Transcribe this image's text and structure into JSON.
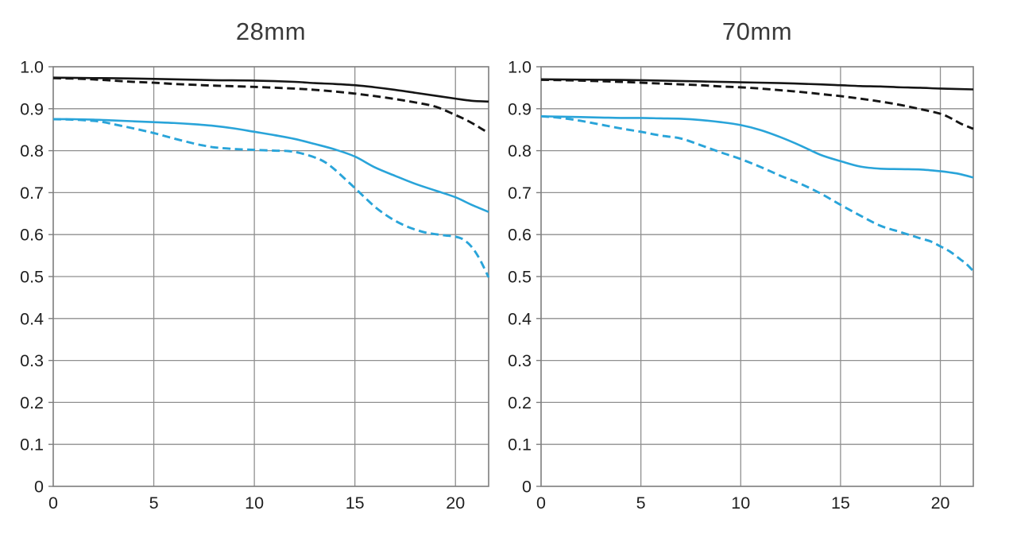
{
  "page": {
    "background": "#ffffff"
  },
  "colors": {
    "grid": "#8f8f8f",
    "plot_border": "#7d7d7d",
    "curve_black": "#151515",
    "curve_blue": "#29a4d9",
    "tick_text": "#1f1f1f",
    "title_text": "#3a3a3a"
  },
  "chart_data": [
    {
      "type": "line",
      "title": "28mm",
      "xlabel": "",
      "ylabel": "",
      "x_range": [
        0,
        21.65
      ],
      "y_range": [
        0,
        1.0
      ],
      "x_ticks": [
        0,
        5,
        10,
        15,
        20
      ],
      "x_tick_labels": [
        "0",
        "5",
        "10",
        "15",
        "20"
      ],
      "y_ticks": [
        0,
        0.1,
        0.2,
        0.3,
        0.4,
        0.5,
        0.6,
        0.7,
        0.8,
        0.9,
        1.0
      ],
      "y_tick_labels": [
        "0",
        "0.1",
        "0.2",
        "0.3",
        "0.4",
        "0.5",
        "0.6",
        "0.7",
        "0.8",
        "0.9",
        "1.0"
      ],
      "grid": true,
      "legend_position": "none",
      "series": [
        {
          "name": "black-solid",
          "color": "#151515",
          "dashed": false,
          "points": [
            [
              0,
              0.974
            ],
            [
              2,
              0.973
            ],
            [
              4,
              0.972
            ],
            [
              6,
              0.97
            ],
            [
              8,
              0.968
            ],
            [
              10,
              0.967
            ],
            [
              12,
              0.964
            ],
            [
              13,
              0.961
            ],
            [
              14,
              0.959
            ],
            [
              15,
              0.956
            ],
            [
              16,
              0.951
            ],
            [
              17,
              0.945
            ],
            [
              18,
              0.938
            ],
            [
              19,
              0.931
            ],
            [
              20,
              0.924
            ],
            [
              20.8,
              0.919
            ],
            [
              21.65,
              0.917
            ]
          ]
        },
        {
          "name": "black-dashed",
          "color": "#151515",
          "dashed": true,
          "points": [
            [
              0,
              0.973
            ],
            [
              1.5,
              0.971
            ],
            [
              3,
              0.967
            ],
            [
              4,
              0.964
            ],
            [
              5,
              0.962
            ],
            [
              6,
              0.959
            ],
            [
              7,
              0.957
            ],
            [
              8,
              0.955
            ],
            [
              10,
              0.952
            ],
            [
              12,
              0.948
            ],
            [
              13,
              0.945
            ],
            [
              14,
              0.941
            ],
            [
              15,
              0.936
            ],
            [
              16,
              0.93
            ],
            [
              17,
              0.923
            ],
            [
              18,
              0.915
            ],
            [
              19,
              0.905
            ],
            [
              20,
              0.885
            ],
            [
              20.5,
              0.874
            ],
            [
              21,
              0.861
            ],
            [
              21.3,
              0.852
            ],
            [
              21.65,
              0.842
            ]
          ]
        },
        {
          "name": "blue-solid",
          "color": "#29a4d9",
          "dashed": false,
          "points": [
            [
              0,
              0.875
            ],
            [
              1,
              0.875
            ],
            [
              2,
              0.874
            ],
            [
              3,
              0.872
            ],
            [
              4,
              0.87
            ],
            [
              5,
              0.868
            ],
            [
              6,
              0.866
            ],
            [
              7,
              0.863
            ],
            [
              8,
              0.859
            ],
            [
              9,
              0.853
            ],
            [
              10,
              0.845
            ],
            [
              11,
              0.837
            ],
            [
              12,
              0.828
            ],
            [
              13,
              0.816
            ],
            [
              14,
              0.803
            ],
            [
              15,
              0.786
            ],
            [
              16,
              0.76
            ],
            [
              17,
              0.74
            ],
            [
              18,
              0.721
            ],
            [
              19,
              0.705
            ],
            [
              20,
              0.689
            ],
            [
              20.8,
              0.671
            ],
            [
              21.65,
              0.654
            ]
          ]
        },
        {
          "name": "blue-dashed",
          "color": "#29a4d9",
          "dashed": true,
          "points": [
            [
              0,
              0.875
            ],
            [
              1,
              0.874
            ],
            [
              2,
              0.871
            ],
            [
              2.5,
              0.868
            ],
            [
              3,
              0.863
            ],
            [
              4,
              0.853
            ],
            [
              5,
              0.842
            ],
            [
              6,
              0.829
            ],
            [
              7,
              0.817
            ],
            [
              7.5,
              0.812
            ],
            [
              8,
              0.808
            ],
            [
              9,
              0.804
            ],
            [
              10,
              0.802
            ],
            [
              11,
              0.8
            ],
            [
              11.7,
              0.799
            ],
            [
              12.3,
              0.794
            ],
            [
              13,
              0.784
            ],
            [
              13.5,
              0.773
            ],
            [
              14,
              0.755
            ],
            [
              14.5,
              0.733
            ],
            [
              15,
              0.711
            ],
            [
              15.5,
              0.688
            ],
            [
              16,
              0.666
            ],
            [
              16.5,
              0.648
            ],
            [
              17,
              0.633
            ],
            [
              17.5,
              0.621
            ],
            [
              18,
              0.612
            ],
            [
              18.5,
              0.605
            ],
            [
              19,
              0.601
            ],
            [
              19.5,
              0.598
            ],
            [
              20,
              0.595
            ],
            [
              20.4,
              0.588
            ],
            [
              20.8,
              0.571
            ],
            [
              21.2,
              0.542
            ],
            [
              21.65,
              0.498
            ]
          ]
        }
      ]
    },
    {
      "type": "line",
      "title": "70mm",
      "xlabel": "",
      "ylabel": "",
      "x_range": [
        0,
        21.65
      ],
      "y_range": [
        0,
        1.0
      ],
      "x_ticks": [
        0,
        5,
        10,
        15,
        20
      ],
      "x_tick_labels": [
        "0",
        "5",
        "10",
        "15",
        "20"
      ],
      "y_ticks": [
        0,
        0.1,
        0.2,
        0.3,
        0.4,
        0.5,
        0.6,
        0.7,
        0.8,
        0.9,
        1.0
      ],
      "y_tick_labels": [
        "0",
        "0.1",
        "0.2",
        "0.3",
        "0.4",
        "0.5",
        "0.6",
        "0.7",
        "0.8",
        "0.9",
        "1.0"
      ],
      "grid": true,
      "legend_position": "none",
      "series": [
        {
          "name": "black-solid",
          "color": "#151515",
          "dashed": false,
          "points": [
            [
              0,
              0.97
            ],
            [
              3,
              0.969
            ],
            [
              5,
              0.968
            ],
            [
              8,
              0.965
            ],
            [
              10,
              0.963
            ],
            [
              12,
              0.961
            ],
            [
              14,
              0.958
            ],
            [
              15,
              0.956
            ],
            [
              16,
              0.954
            ],
            [
              17,
              0.953
            ],
            [
              18,
              0.951
            ],
            [
              19,
              0.95
            ],
            [
              20,
              0.948
            ],
            [
              21.65,
              0.946
            ]
          ]
        },
        {
          "name": "black-dashed",
          "color": "#151515",
          "dashed": true,
          "points": [
            [
              0,
              0.969
            ],
            [
              2,
              0.967
            ],
            [
              4,
              0.964
            ],
            [
              5,
              0.962
            ],
            [
              6,
              0.96
            ],
            [
              7,
              0.958
            ],
            [
              8,
              0.956
            ],
            [
              9,
              0.953
            ],
            [
              10,
              0.951
            ],
            [
              11,
              0.948
            ],
            [
              12,
              0.944
            ],
            [
              13,
              0.94
            ],
            [
              14,
              0.935
            ],
            [
              15,
              0.93
            ],
            [
              16,
              0.924
            ],
            [
              17,
              0.917
            ],
            [
              18,
              0.909
            ],
            [
              19,
              0.899
            ],
            [
              20,
              0.888
            ],
            [
              20.5,
              0.878
            ],
            [
              21,
              0.865
            ],
            [
              21.65,
              0.852
            ]
          ]
        },
        {
          "name": "blue-solid",
          "color": "#29a4d9",
          "dashed": false,
          "points": [
            [
              0,
              0.882
            ],
            [
              1,
              0.881
            ],
            [
              2,
              0.88
            ],
            [
              3,
              0.879
            ],
            [
              4,
              0.878
            ],
            [
              5,
              0.878
            ],
            [
              6,
              0.877
            ],
            [
              7,
              0.876
            ],
            [
              8,
              0.873
            ],
            [
              9,
              0.868
            ],
            [
              10,
              0.861
            ],
            [
              11,
              0.849
            ],
            [
              12,
              0.832
            ],
            [
              13,
              0.812
            ],
            [
              14,
              0.79
            ],
            [
              15,
              0.775
            ],
            [
              16,
              0.762
            ],
            [
              17,
              0.757
            ],
            [
              18,
              0.756
            ],
            [
              19,
              0.755
            ],
            [
              20,
              0.751
            ],
            [
              20.5,
              0.748
            ],
            [
              21,
              0.744
            ],
            [
              21.65,
              0.736
            ]
          ]
        },
        {
          "name": "blue-dashed",
          "color": "#29a4d9",
          "dashed": true,
          "points": [
            [
              0,
              0.882
            ],
            [
              1,
              0.878
            ],
            [
              2,
              0.871
            ],
            [
              3,
              0.862
            ],
            [
              4,
              0.853
            ],
            [
              5,
              0.845
            ],
            [
              6,
              0.836
            ],
            [
              7,
              0.829
            ],
            [
              8,
              0.813
            ],
            [
              9,
              0.796
            ],
            [
              10,
              0.78
            ],
            [
              11,
              0.761
            ],
            [
              12,
              0.74
            ],
            [
              13,
              0.721
            ],
            [
              14,
              0.698
            ],
            [
              15,
              0.671
            ],
            [
              16,
              0.645
            ],
            [
              17,
              0.621
            ],
            [
              18,
              0.606
            ],
            [
              19,
              0.591
            ],
            [
              19.5,
              0.584
            ],
            [
              20,
              0.572
            ],
            [
              20.5,
              0.559
            ],
            [
              21,
              0.541
            ],
            [
              21.3,
              0.53
            ],
            [
              21.65,
              0.513
            ]
          ]
        }
      ]
    }
  ]
}
